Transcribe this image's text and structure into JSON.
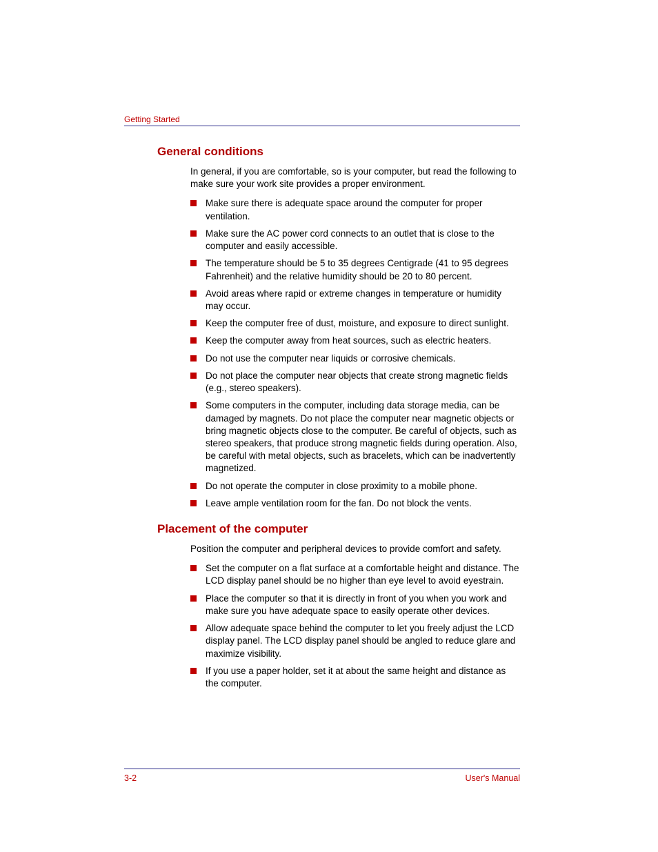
{
  "header": {
    "label": "Getting Started"
  },
  "sections": [
    {
      "title": "General conditions",
      "intro": "In general, if you are comfortable, so is your computer, but read the following to make sure your work site provides a proper environment.",
      "items": [
        "Make sure there is adequate space around the computer for proper ventilation.",
        "Make sure the AC power cord connects to an outlet that is close to the computer and easily accessible.",
        "The temperature should be 5 to 35 degrees Centigrade (41 to 95 degrees Fahrenheit) and the relative humidity should be 20 to 80 percent.",
        "Avoid areas where rapid or extreme changes in temperature or humidity may occur.",
        "Keep the computer free of dust, moisture, and exposure to direct sunlight.",
        "Keep the computer away from heat sources, such as electric heaters.",
        "Do not use the computer near liquids or corrosive chemicals.",
        "Do not place the computer near objects that create strong magnetic fields (e.g., stereo speakers).",
        "Some computers in the computer, including data storage media, can be damaged by magnets. Do not place the computer near magnetic objects or bring magnetic objects close to the computer. Be careful of objects, such as stereo speakers, that produce strong magnetic fields during operation. Also, be careful with metal objects, such as bracelets, which can be inadvertently magnetized.",
        "Do not operate the computer in close proximity to a mobile phone.",
        "Leave ample ventilation room for the fan. Do not block the vents."
      ]
    },
    {
      "title": "Placement of the computer",
      "intro": "Position the computer and peripheral devices to provide comfort and safety.",
      "items": [
        "Set the computer on a flat surface at a comfortable height and distance. The LCD display panel should be no higher than eye level to avoid eyestrain.",
        "Place the computer so that it is directly in front of you when you work and make sure you have adequate space to easily operate other devices.",
        "Allow adequate space behind the computer to let you freely adjust the LCD display panel. The LCD display panel should be angled to reduce glare and maximize visibility.",
        "If you use a paper holder, set it at about the same height and distance as the computer."
      ]
    }
  ],
  "footer": {
    "page": "3-2",
    "manual": "User's Manual"
  },
  "colors": {
    "accent": "#c00000",
    "rule": "#2a2a8a",
    "text": "#000000",
    "background": "#ffffff"
  }
}
